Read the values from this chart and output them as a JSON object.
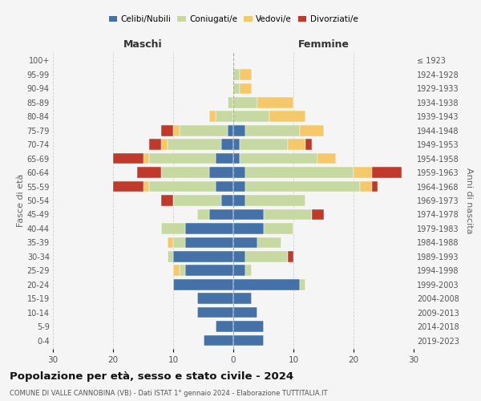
{
  "age_groups": [
    "0-4",
    "5-9",
    "10-14",
    "15-19",
    "20-24",
    "25-29",
    "30-34",
    "35-39",
    "40-44",
    "45-49",
    "50-54",
    "55-59",
    "60-64",
    "65-69",
    "70-74",
    "75-79",
    "80-84",
    "85-89",
    "90-94",
    "95-99",
    "100+"
  ],
  "birth_years": [
    "2019-2023",
    "2014-2018",
    "2009-2013",
    "2004-2008",
    "1999-2003",
    "1994-1998",
    "1989-1993",
    "1984-1988",
    "1979-1983",
    "1974-1978",
    "1969-1973",
    "1964-1968",
    "1959-1963",
    "1954-1958",
    "1949-1953",
    "1944-1948",
    "1939-1943",
    "1934-1938",
    "1929-1933",
    "1924-1928",
    "≤ 1923"
  ],
  "colors": {
    "celibi": "#4472a8",
    "coniugati": "#c5d9a0",
    "vedovi": "#f5c96a",
    "divorziati": "#c0392b"
  },
  "maschi": {
    "celibi": [
      5,
      3,
      6,
      6,
      10,
      8,
      10,
      8,
      8,
      4,
      2,
      3,
      4,
      3,
      2,
      1,
      0,
      0,
      0,
      0,
      0
    ],
    "coniugati": [
      0,
      0,
      0,
      0,
      0,
      1,
      1,
      2,
      4,
      2,
      8,
      11,
      8,
      11,
      9,
      8,
      3,
      1,
      0,
      0,
      0
    ],
    "vedovi": [
      0,
      0,
      0,
      0,
      0,
      1,
      0,
      1,
      0,
      0,
      0,
      1,
      0,
      1,
      1,
      1,
      1,
      0,
      0,
      0,
      0
    ],
    "divorziati": [
      0,
      0,
      0,
      0,
      0,
      0,
      0,
      0,
      0,
      0,
      2,
      5,
      4,
      5,
      2,
      2,
      0,
      0,
      0,
      0,
      0
    ]
  },
  "femmine": {
    "celibi": [
      5,
      5,
      4,
      3,
      11,
      2,
      2,
      4,
      5,
      5,
      2,
      2,
      2,
      1,
      1,
      2,
      0,
      0,
      0,
      0,
      0
    ],
    "coniugati": [
      0,
      0,
      0,
      0,
      1,
      1,
      7,
      4,
      5,
      8,
      10,
      19,
      18,
      13,
      8,
      9,
      6,
      4,
      1,
      1,
      0
    ],
    "vedovi": [
      0,
      0,
      0,
      0,
      0,
      0,
      0,
      0,
      0,
      0,
      0,
      2,
      3,
      3,
      3,
      4,
      6,
      6,
      2,
      2,
      0
    ],
    "divorziati": [
      0,
      0,
      0,
      0,
      0,
      0,
      1,
      0,
      0,
      2,
      0,
      1,
      5,
      0,
      1,
      0,
      0,
      0,
      0,
      0,
      0
    ]
  },
  "xlim": 30,
  "title": "Popolazione per età, sesso e stato civile - 2024",
  "subtitle": "COMUNE DI VALLE CANNOBINA (VB) - Dati ISTAT 1° gennaio 2024 - Elaborazione TUTTITALIA.IT",
  "ylabel_left": "Fasce di età",
  "ylabel_right": "Anni di nascita",
  "xlabel_left": "Maschi",
  "xlabel_right": "Femmine",
  "bg_color": "#f5f5f5",
  "grid_color": "#cccccc"
}
